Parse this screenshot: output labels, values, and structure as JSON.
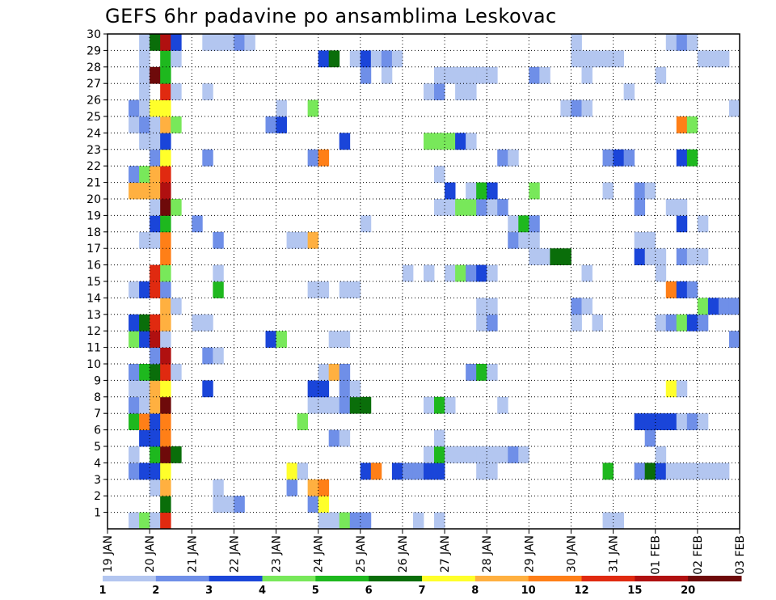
{
  "chart_data": {
    "type": "heatmap",
    "title": "GEFS 6hr padavine po ansamblima Leskovac",
    "xlabel": "",
    "ylabel": "",
    "y_ticks": [
      "1",
      "2",
      "3",
      "4",
      "5",
      "6",
      "7",
      "8",
      "9",
      "10",
      "11",
      "12",
      "13",
      "14",
      "15",
      "16",
      "17",
      "18",
      "19",
      "20",
      "21",
      "22",
      "23",
      "24",
      "25",
      "26",
      "27",
      "28",
      "29",
      "30"
    ],
    "x_ticks": [
      "19 JAN",
      "20 JAN",
      "21 JAN",
      "22 JAN",
      "23 JAN",
      "24 JAN",
      "25 JAN",
      "26 JAN",
      "27 JAN",
      "28 JAN",
      "29 JAN",
      "30 JAN",
      "31 JAN",
      "01 FEB",
      "02 FEB",
      "03 FEB"
    ],
    "x_range_steps": [
      0,
      60
    ],
    "y_range": [
      0,
      30
    ],
    "grid": true,
    "legend": "bottom colorbar",
    "colorbar": {
      "labels": [
        "1",
        "2",
        "3",
        "4",
        "5",
        "6",
        "7",
        "8",
        "10",
        "12",
        "15",
        "20"
      ],
      "colors": [
        "#b3c6f0",
        "#6f8fe8",
        "#1a45d9",
        "#78e85a",
        "#1eb81e",
        "#0a6e0a",
        "#ffff2a",
        "#ffb040",
        "#ff7f17",
        "#e02a10",
        "#b01010",
        "#6e0a0a"
      ]
    },
    "cells": [
      {
        "m": 30,
        "t": [
          3,
          1
        ],
        "c": [
          7,
          9,
          10,
          1,
          1,
          1,
          1,
          1,
          1,
          1,
          2,
          2,
          2,
          3,
          3,
          3,
          3,
          3,
          3,
          3,
          3,
          3,
          3,
          4
        ]
      },
      {
        "m": 30,
        "t": [
          3,
          1
        ],
        "c": [
          10,
          11,
          12,
          1,
          1,
          1,
          2,
          1,
          1,
          1,
          2,
          2,
          2,
          1,
          3,
          3,
          3,
          3,
          3,
          3,
          3,
          3,
          4,
          1
        ]
      },
      {
        "m": 30,
        "t": [
          3,
          1
        ],
        "c": [
          3,
          5,
          6,
          7,
          1,
          3,
          4,
          6,
          2,
          2
        ]
      },
      {
        "m": 30,
        "t": [
          3,
          1
        ],
        "c": [
          9,
          11,
          12,
          3,
          1,
          3,
          2,
          3,
          9,
          11,
          12,
          3,
          1,
          3,
          11,
          13,
          0,
          3
        ]
      },
      {
        "m": 29,
        "t": [
          4,
          2
        ],
        "c": [
          3,
          3,
          3,
          1,
          1,
          2,
          1,
          2,
          3,
          2,
          2,
          7,
          2,
          3,
          1,
          4,
          3,
          3
        ]
      },
      {
        "m": 28,
        "t": [
          4,
          2
        ],
        "c": [
          8,
          9,
          12,
          1,
          1,
          3
        ]
      },
      {
        "m": 27,
        "t": [
          3,
          3
        ],
        "c": [
          1,
          2,
          3,
          5,
          6,
          6,
          9,
          9,
          10,
          11,
          12,
          12,
          11,
          9,
          10,
          8,
          8,
          7,
          7,
          5,
          5,
          4,
          6
        ]
      },
      {
        "m": 26,
        "t": [
          3,
          2
        ],
        "c": [
          6,
          7,
          12,
          5,
          5,
          7,
          11,
          10,
          12,
          10,
          1,
          10,
          12,
          1,
          8,
          8,
          2,
          6,
          10,
          7
        ]
      },
      {
        "m": 25,
        "t": [
          3,
          2
        ],
        "c": [
          3,
          4,
          11,
          1,
          3,
          2,
          2,
          2,
          4,
          1,
          1,
          1,
          1,
          3,
          3
        ]
      },
      {
        "m": 24,
        "t": [
          4,
          1
        ],
        "c": [
          6,
          7,
          8,
          6,
          7,
          3,
          6,
          7,
          4,
          10,
          12,
          11,
          5,
          4,
          9,
          9,
          6,
          7,
          1,
          3,
          3,
          1
        ]
      },
      {
        "m": 23,
        "t": [
          3,
          2
        ],
        "c": [
          2,
          3,
          5,
          8,
          1,
          6,
          2,
          2,
          3,
          4,
          1,
          5
        ]
      }
    ],
    "grid_rows": {
      "30": [
        [
          3,
          1
        ],
        [
          4,
          2
        ],
        [
          5,
          3
        ],
        [
          6,
          3
        ],
        [
          7,
          3
        ],
        [
          8,
          9,
          4,
          1
        ],
        [
          10,
          3
        ],
        [
          11,
          2
        ],
        [
          12,
          2
        ],
        [
          13,
          2
        ],
        [
          14,
          2
        ],
        [
          15,
          2
        ]
      ]
    }
  }
}
